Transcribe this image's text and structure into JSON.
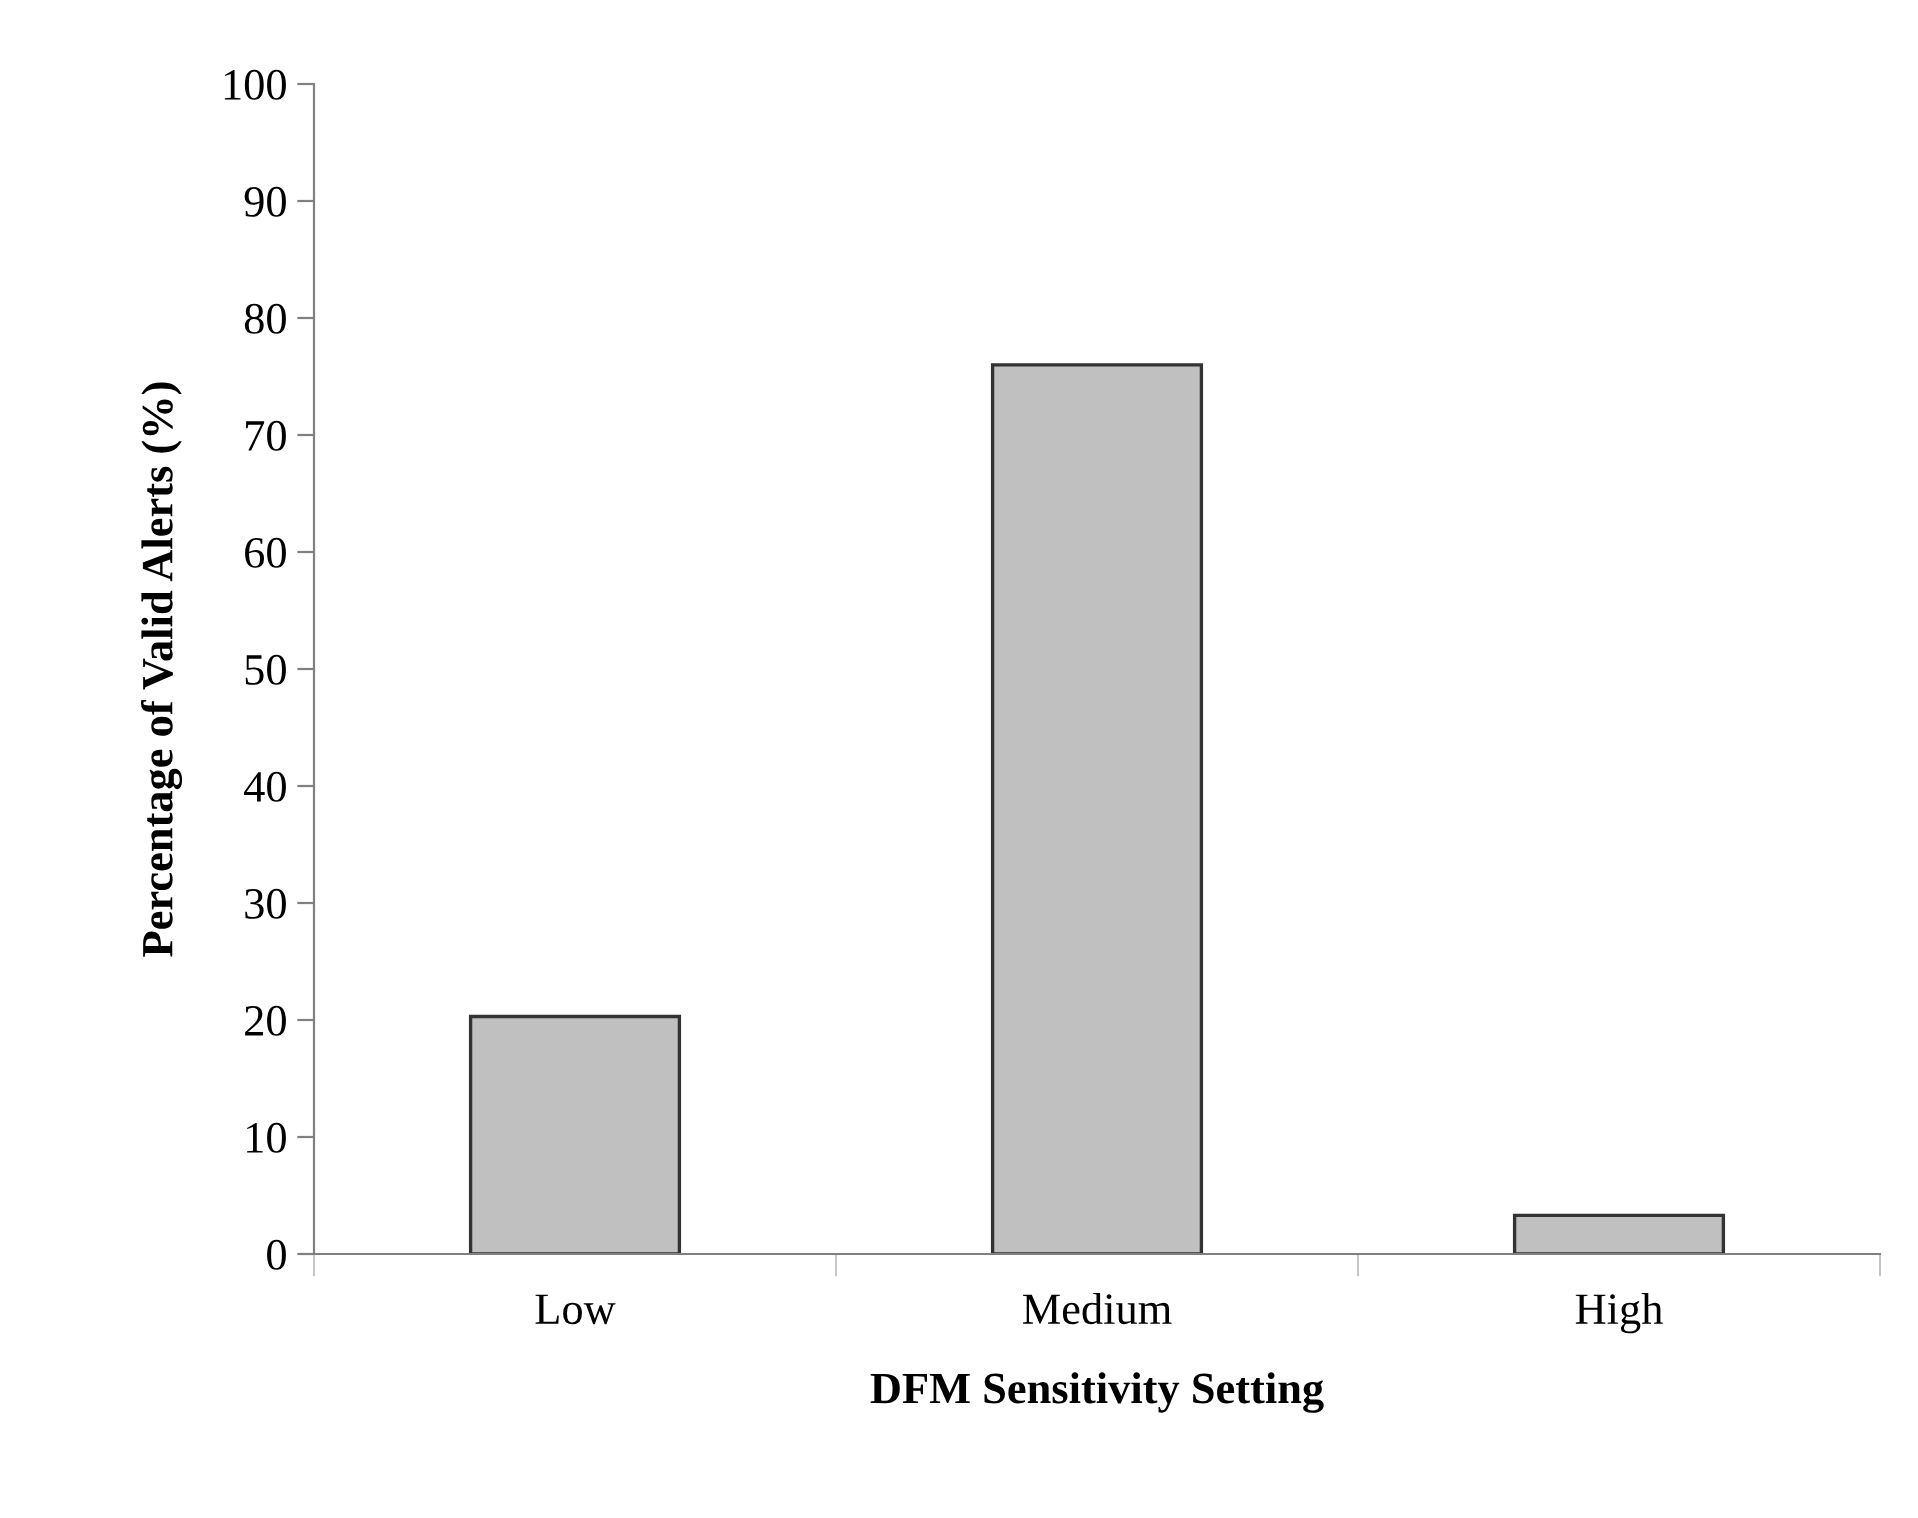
{
  "chart_data": {
    "type": "bar",
    "xlabel": "DFM Sensitivity Setting",
    "ylabel": "Percentage of Valid Alerts (%)",
    "categories": [
      "Low",
      "Medium",
      "High"
    ],
    "values": [
      20.3,
      76.0,
      3.3
    ],
    "color": "#c0c0c0",
    "ylim": [
      0,
      100
    ],
    "yticks": [
      0,
      10,
      20,
      30,
      40,
      50,
      60,
      70,
      80,
      90,
      100
    ],
    "grid": false,
    "legend": false
  }
}
